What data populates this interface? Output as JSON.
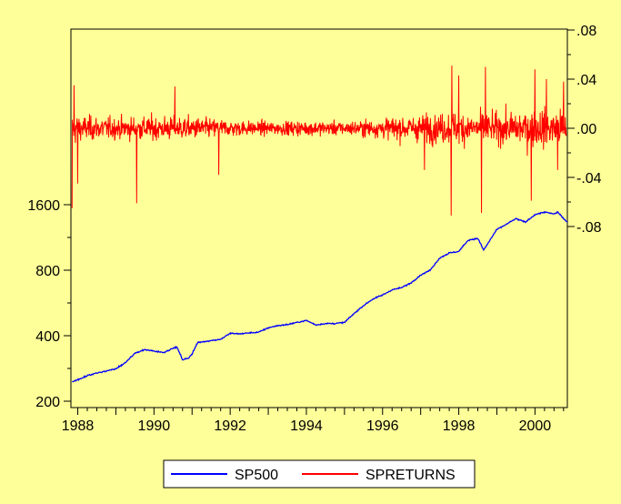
{
  "chart_data": {
    "type": "line",
    "title": "",
    "xlabel": "",
    "background_color": "#FFFF99",
    "plot_background_color": "#FFFF99",
    "grid": false,
    "legend_placement": "bottom-center",
    "x_ticks": [
      "1988",
      "1990",
      "1992",
      "1994",
      "1996",
      "1998",
      "2000"
    ],
    "xlim": [
      1987.82,
      2000.85
    ],
    "axes": {
      "left": {
        "scale": "log",
        "ticks": [
          "200",
          "400",
          "800",
          "1600"
        ],
        "ylim": [
          200,
          1700
        ]
      },
      "right": {
        "scale": "linear",
        "ticks": [
          ".08",
          ".04",
          ".00",
          "-.04",
          "-.08"
        ],
        "ylim": [
          -0.08,
          0.08
        ]
      }
    },
    "series": [
      {
        "name": "SP500",
        "axis": "left",
        "color": "#0000FF",
        "points": [
          [
            1987.85,
            246
          ],
          [
            1988.0,
            251
          ],
          [
            1988.25,
            262
          ],
          [
            1988.5,
            270
          ],
          [
            1988.75,
            275
          ],
          [
            1989.0,
            282
          ],
          [
            1989.25,
            300
          ],
          [
            1989.5,
            332
          ],
          [
            1989.75,
            345
          ],
          [
            1990.0,
            340
          ],
          [
            1990.25,
            335
          ],
          [
            1990.5,
            350
          ],
          [
            1990.6,
            355
          ],
          [
            1990.75,
            310
          ],
          [
            1990.9,
            315
          ],
          [
            1991.0,
            330
          ],
          [
            1991.15,
            372
          ],
          [
            1991.5,
            380
          ],
          [
            1991.75,
            385
          ],
          [
            1992.0,
            410
          ],
          [
            1992.25,
            408
          ],
          [
            1992.5,
            412
          ],
          [
            1992.75,
            415
          ],
          [
            1993.0,
            435
          ],
          [
            1993.25,
            445
          ],
          [
            1993.5,
            450
          ],
          [
            1993.75,
            460
          ],
          [
            1994.0,
            470
          ],
          [
            1994.25,
            448
          ],
          [
            1994.5,
            455
          ],
          [
            1994.75,
            455
          ],
          [
            1995.0,
            460
          ],
          [
            1995.25,
            505
          ],
          [
            1995.5,
            550
          ],
          [
            1995.75,
            590
          ],
          [
            1996.0,
            615
          ],
          [
            1996.25,
            650
          ],
          [
            1996.5,
            665
          ],
          [
            1996.75,
            700
          ],
          [
            1997.0,
            760
          ],
          [
            1997.25,
            800
          ],
          [
            1997.5,
            910
          ],
          [
            1997.75,
            960
          ],
          [
            1998.0,
            975
          ],
          [
            1998.25,
            1100
          ],
          [
            1998.5,
            1120
          ],
          [
            1998.65,
            990
          ],
          [
            1998.75,
            1050
          ],
          [
            1999.0,
            1230
          ],
          [
            1999.25,
            1300
          ],
          [
            1999.5,
            1380
          ],
          [
            1999.75,
            1330
          ],
          [
            2000.0,
            1440
          ],
          [
            2000.25,
            1480
          ],
          [
            2000.5,
            1450
          ],
          [
            2000.6,
            1480
          ],
          [
            2000.75,
            1380
          ],
          [
            2000.85,
            1330
          ]
        ]
      },
      {
        "name": "SPRETURNS",
        "axis": "right",
        "color": "#FF0000",
        "noise_envelope": [
          [
            1987.85,
            0.025
          ],
          [
            1988.0,
            0.017
          ],
          [
            1989.0,
            0.014
          ],
          [
            1990.0,
            0.016
          ],
          [
            1991.0,
            0.015
          ],
          [
            1992.0,
            0.011
          ],
          [
            1993.0,
            0.009
          ],
          [
            1994.0,
            0.01
          ],
          [
            1995.0,
            0.009
          ],
          [
            1996.0,
            0.013
          ],
          [
            1997.0,
            0.018
          ],
          [
            1998.0,
            0.021
          ],
          [
            1999.0,
            0.02
          ],
          [
            2000.0,
            0.026
          ],
          [
            2000.85,
            0.025
          ]
        ],
        "spikes": [
          [
            1987.85,
            -0.065
          ],
          [
            1987.9,
            0.035
          ],
          [
            1988.0,
            -0.045
          ],
          [
            1989.55,
            -0.061
          ],
          [
            1990.55,
            0.034
          ],
          [
            1991.7,
            -0.038
          ],
          [
            1997.1,
            -0.034
          ],
          [
            1997.8,
            -0.071
          ],
          [
            1997.82,
            0.051
          ],
          [
            1998.0,
            0.043
          ],
          [
            1998.6,
            -0.069
          ],
          [
            1998.7,
            0.05
          ],
          [
            1999.9,
            -0.059
          ],
          [
            2000.0,
            0.048
          ],
          [
            2000.3,
            0.04
          ],
          [
            2000.6,
            -0.034
          ],
          [
            2000.75,
            0.038
          ]
        ]
      }
    ]
  }
}
